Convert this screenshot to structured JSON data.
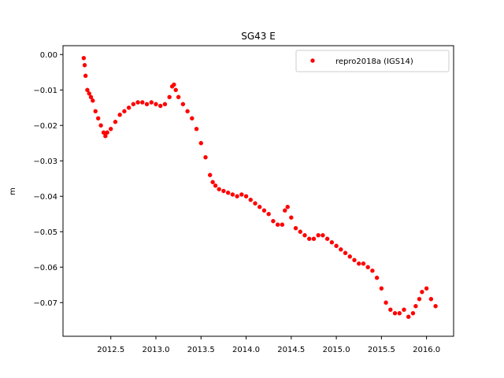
{
  "chart_data": {
    "type": "scatter",
    "title": "SG43 E",
    "xlabel": "",
    "ylabel": "m",
    "xlim": [
      2011.97,
      2016.3
    ],
    "ylim": [
      -0.0795,
      0.0025
    ],
    "xticks": [
      2012.5,
      2013.0,
      2013.5,
      2014.0,
      2014.5,
      2015.0,
      2015.5,
      2016.0
    ],
    "xtick_labels": [
      "2012.5",
      "2013.0",
      "2013.5",
      "2014.0",
      "2014.5",
      "2015.0",
      "2015.5",
      "2016.0"
    ],
    "yticks": [
      0.0,
      -0.01,
      -0.02,
      -0.03,
      -0.04,
      -0.05,
      -0.06,
      -0.07
    ],
    "ytick_labels": [
      "0.00",
      "−0.01",
      "−0.02",
      "−0.03",
      "−0.04",
      "−0.05",
      "−0.06",
      "−0.07"
    ],
    "grid": false,
    "legend_position": "top-right",
    "series": [
      {
        "name": "repro2018a (IGS14)",
        "color": "#ff0000",
        "marker": "circle",
        "x": [
          2012.2,
          2012.21,
          2012.22,
          2012.24,
          2012.26,
          2012.28,
          2012.3,
          2012.33,
          2012.36,
          2012.39,
          2012.42,
          2012.44,
          2012.46,
          2012.5,
          2012.55,
          2012.6,
          2012.65,
          2012.7,
          2012.75,
          2012.8,
          2012.85,
          2012.9,
          2012.95,
          2013.0,
          2013.05,
          2013.1,
          2013.15,
          2013.18,
          2013.2,
          2013.22,
          2013.25,
          2013.3,
          2013.35,
          2013.4,
          2013.45,
          2013.5,
          2013.55,
          2013.6,
          2013.63,
          2013.66,
          2013.7,
          2013.75,
          2013.8,
          2013.85,
          2013.9,
          2013.95,
          2014.0,
          2014.05,
          2014.1,
          2014.15,
          2014.2,
          2014.25,
          2014.3,
          2014.35,
          2014.4,
          2014.43,
          2014.46,
          2014.5,
          2014.55,
          2014.6,
          2014.65,
          2014.7,
          2014.75,
          2014.8,
          2014.85,
          2014.9,
          2014.95,
          2015.0,
          2015.05,
          2015.1,
          2015.15,
          2015.2,
          2015.25,
          2015.3,
          2015.35,
          2015.4,
          2015.45,
          2015.5,
          2015.55,
          2015.6,
          2015.65,
          2015.7,
          2015.75,
          2015.8,
          2015.85,
          2015.88,
          2015.92,
          2015.95,
          2016.0,
          2016.05,
          2016.1
        ],
        "y": [
          -0.001,
          -0.003,
          -0.006,
          -0.01,
          -0.011,
          -0.012,
          -0.013,
          -0.016,
          -0.018,
          -0.02,
          -0.022,
          -0.023,
          -0.022,
          -0.021,
          -0.019,
          -0.017,
          -0.016,
          -0.015,
          -0.014,
          -0.0135,
          -0.0135,
          -0.014,
          -0.0135,
          -0.014,
          -0.0145,
          -0.014,
          -0.012,
          -0.009,
          -0.0085,
          -0.01,
          -0.012,
          -0.014,
          -0.016,
          -0.018,
          -0.021,
          -0.025,
          -0.029,
          -0.034,
          -0.036,
          -0.037,
          -0.038,
          -0.0385,
          -0.039,
          -0.0395,
          -0.04,
          -0.0395,
          -0.04,
          -0.041,
          -0.042,
          -0.043,
          -0.044,
          -0.045,
          -0.047,
          -0.048,
          -0.048,
          -0.044,
          -0.043,
          -0.046,
          -0.049,
          -0.05,
          -0.051,
          -0.052,
          -0.052,
          -0.051,
          -0.051,
          -0.052,
          -0.053,
          -0.054,
          -0.055,
          -0.056,
          -0.057,
          -0.058,
          -0.059,
          -0.059,
          -0.06,
          -0.061,
          -0.063,
          -0.066,
          -0.07,
          -0.072,
          -0.073,
          -0.073,
          -0.072,
          -0.074,
          -0.073,
          -0.071,
          -0.069,
          -0.067,
          -0.066,
          -0.069,
          -0.071
        ]
      }
    ]
  }
}
